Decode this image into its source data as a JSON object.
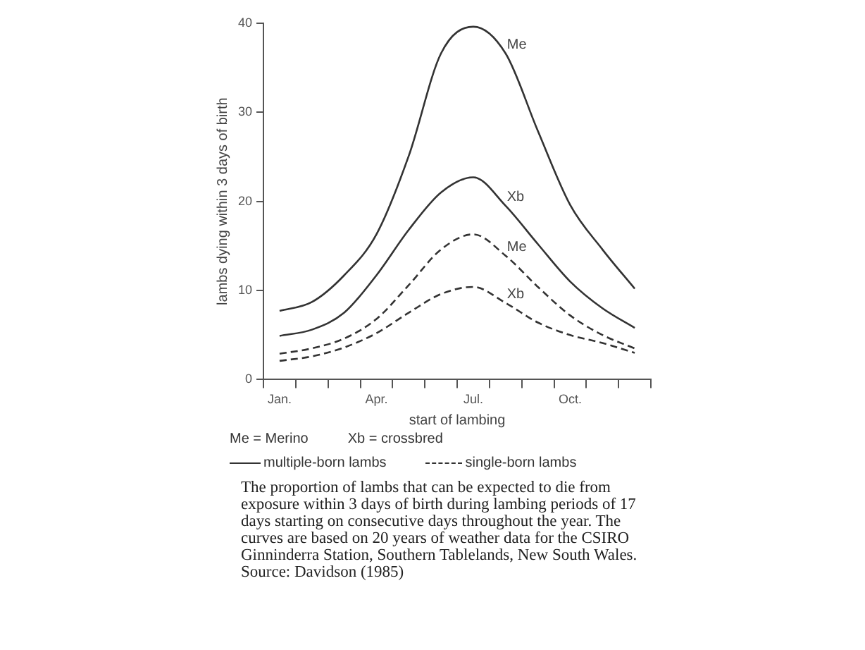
{
  "chart_data": {
    "type": "line",
    "xlabel": "start of lambing",
    "ylabel": "lambs dying within 3 days of birth",
    "categories": [
      "Jan.",
      null,
      null,
      "Apr.",
      null,
      null,
      "Jul.",
      null,
      null,
      "Oct.",
      null,
      null
    ],
    "ylim": [
      0,
      40
    ],
    "yticks": [
      0,
      10,
      20,
      30,
      40
    ],
    "grid": false,
    "legend": false,
    "marker": "none",
    "series": [
      {
        "name": "Me",
        "color": "#333333",
        "line_style": "solid",
        "values": [
          7.7,
          8.7,
          11.7,
          16.3,
          25.1,
          36.6,
          39.6,
          36.6,
          27.9,
          19.6,
          14.6,
          10.2
        ]
      },
      {
        "name": "Xb",
        "color": "#333333",
        "line_style": "solid",
        "values": [
          4.9,
          5.6,
          7.5,
          11.7,
          16.8,
          21.0,
          22.7,
          19.5,
          15.2,
          11.0,
          8.0,
          5.8
        ]
      },
      {
        "name": "Me",
        "color": "#333333",
        "line_style": "dashed",
        "values": [
          2.9,
          3.5,
          4.6,
          6.8,
          10.6,
          14.6,
          16.3,
          13.9,
          10.4,
          7.2,
          5.0,
          3.5
        ]
      },
      {
        "name": "Xb",
        "color": "#333333",
        "line_style": "dashed",
        "values": [
          2.1,
          2.6,
          3.6,
          5.2,
          7.5,
          9.6,
          10.4,
          8.6,
          6.4,
          5.0,
          4.1,
          3.0
        ]
      }
    ],
    "annotations": [
      "Me = Merino",
      "Xb = crossbred",
      "multiple-born lambs",
      "single-born lambs",
      "The proportion of lambs that can be expected to die from exposure within 3 days of birth during lambing periods of 17 days starting on consecutive days throughout the year. The curves are based on 20 years of weather data for the CSIRO Ginninderra Station, Southern Tablelands, New South Wales. Source: Davidson (1985)"
    ]
  }
}
